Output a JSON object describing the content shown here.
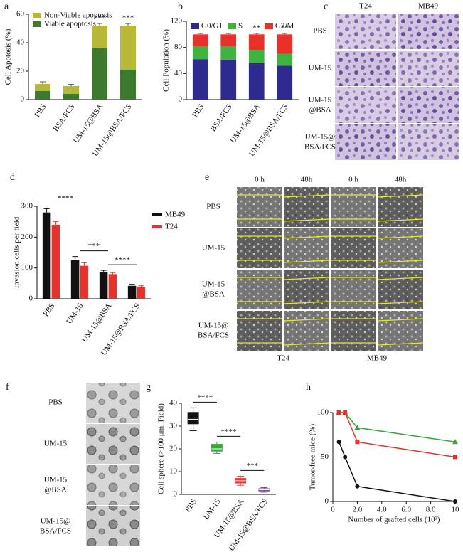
{
  "chart_data": [
    {
      "type": "bar",
      "label": "a",
      "stacked": true,
      "ylabel": "Cell Apotosis (%)",
      "categories": [
        "PBS",
        "BSA/FCS",
        "UM-15@BSA",
        "UM-15@BSA/FCS"
      ],
      "series": [
        {
          "name": "Viable apoptosis",
          "color": "#3d7a2e",
          "values": [
            6,
            4,
            36,
            21
          ],
          "errors": [
            1.5,
            1.2,
            1.5,
            1.5
          ]
        },
        {
          "name": "Non-Viable apoptosis",
          "color": "#b8b838",
          "values": [
            5,
            5.5,
            16,
            31
          ],
          "errors": [
            1.5,
            1.2,
            1.5,
            1.5
          ]
        }
      ],
      "value_annotations": [
        null,
        null,
        "***",
        "***"
      ],
      "ylim": [
        0,
        60
      ],
      "yticks": [
        0,
        20,
        40,
        60
      ],
      "legend": "top-left"
    },
    {
      "type": "bar",
      "label": "b",
      "stacked": true,
      "ylabel": "Cell Population (%)",
      "categories": [
        "PBS",
        "BSA/FCS",
        "UM-15@BSA",
        "UM-15@BSA/FCS"
      ],
      "series": [
        {
          "name": "G0/G1",
          "color": "#2e2a8f",
          "values": [
            62,
            61,
            56,
            52
          ],
          "errors": [
            2,
            2,
            2,
            2
          ]
        },
        {
          "name": "S",
          "color": "#3fb33f",
          "values": [
            20,
            21,
            20,
            18
          ],
          "errors": [
            2,
            2,
            2,
            2
          ]
        },
        {
          "name": "G2/M",
          "color": "#e8312a",
          "values": [
            18,
            18,
            24,
            30
          ],
          "errors": [
            1.5,
            1.5,
            1.5,
            1.5
          ]
        }
      ],
      "value_annotations": [
        null,
        null,
        "**",
        "**"
      ],
      "ylim": [
        0,
        120
      ],
      "yticks": [
        0,
        40,
        80,
        120
      ],
      "legend": "top"
    },
    {
      "type": "bar",
      "label": "d",
      "stacked": false,
      "ylabel": "Invasion cells per field",
      "categories": [
        "PBS",
        "UM-15",
        "UM-15@BSA",
        "UM-15@BSA/FCS"
      ],
      "series": [
        {
          "name": "MB49",
          "color": "#111111",
          "values": [
            280,
            125,
            87,
            42
          ],
          "errors": [
            12,
            12,
            5,
            5
          ]
        },
        {
          "name": "T24",
          "color": "#e8312a",
          "values": [
            240,
            107,
            80,
            38
          ],
          "errors": [
            10,
            10,
            5,
            4
          ]
        }
      ],
      "significance": [
        {
          "text": "****",
          "from": 0,
          "to": 1
        },
        {
          "text": "***",
          "from": 1,
          "to": 2
        },
        {
          "text": "****",
          "from": 2,
          "to": 3
        }
      ],
      "ylim": [
        0,
        300
      ],
      "yticks": [
        0,
        100,
        200,
        300
      ],
      "legend": "right"
    },
    {
      "type": "box",
      "label": "g",
      "ylabel": "Cell sphere (>100 μm, Field)",
      "categories": [
        "PBS",
        "UM-15",
        "UM-15@BSA",
        "UM-15@BSA/FCS"
      ],
      "colors": [
        "#111111",
        "#3aa63a",
        "#e83838",
        "#7a3a9a"
      ],
      "stats": {
        "min": [
          28,
          18,
          4,
          1
        ],
        "q1": [
          31,
          19,
          5,
          1.5
        ],
        "median": [
          33,
          20,
          6,
          2
        ],
        "q3": [
          36,
          22,
          7,
          2.5
        ],
        "max": [
          38,
          23,
          8,
          3
        ]
      },
      "significance": [
        {
          "text": "****",
          "from": 0,
          "to": 1
        },
        {
          "text": "****",
          "from": 1,
          "to": 2
        },
        {
          "text": "***",
          "from": 2,
          "to": 3
        }
      ],
      "ylim": [
        0,
        40
      ],
      "yticks": [
        0,
        10,
        20,
        30,
        40
      ]
    },
    {
      "type": "line",
      "label": "h",
      "ylabel": "Tumor-free mice (%)",
      "xlabel": "Number of grafted cells (10³)",
      "x": [
        0.5,
        1,
        2,
        10
      ],
      "series": [
        {
          "color": "#3aa63a",
          "marker": "triangle",
          "values": [
            100,
            100,
            83,
            67
          ]
        },
        {
          "color": "#e8312a",
          "marker": "square",
          "values": [
            100,
            100,
            67,
            50
          ]
        },
        {
          "color": "#111111",
          "marker": "circle",
          "values": [
            67,
            50,
            17,
            0
          ]
        }
      ],
      "xlim": [
        0,
        10
      ],
      "xticks": [
        0,
        {
          "value": 2,
          "label": "2.0"
        },
        {
          "value": 4,
          "label": "4.0"
        },
        {
          "value": 6,
          "label": "6.0"
        },
        {
          "value": 8,
          "label": "8.0"
        },
        10
      ],
      "ylim": [
        0,
        100
      ],
      "yticks": [
        0,
        50,
        100
      ]
    }
  ],
  "image_panels": [
    {
      "label": "c",
      "columns": [
        "T24",
        "MB49"
      ],
      "rows": [
        [
          "PBS"
        ],
        [
          "UM-15"
        ],
        [
          "UM-15",
          "@BSA"
        ],
        [
          "UM-15@",
          "BSA/FCS"
        ]
      ]
    },
    {
      "label": "e",
      "columns": [
        "0 h",
        "48h",
        "0 h",
        "48h"
      ],
      "rows": [
        [
          "PBS"
        ],
        [
          "UM-15"
        ],
        [
          "UM-15",
          "@BSA"
        ],
        [
          "UM-15@",
          "BSA/FCS"
        ]
      ],
      "footer": [
        "T24",
        "MB49"
      ]
    },
    {
      "label": "f",
      "rows": [
        [
          "PBS"
        ],
        [
          "UM-15"
        ],
        [
          "UM-15",
          "@BSA"
        ],
        [
          "UM-15@",
          "BSA/FCS"
        ]
      ]
    }
  ]
}
